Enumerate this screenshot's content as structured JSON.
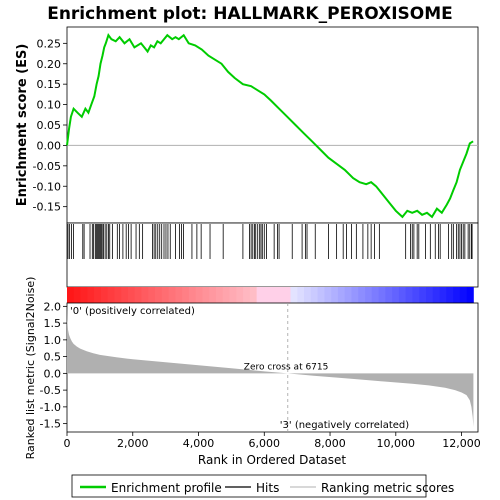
{
  "chart_data": {
    "type": "line",
    "title": "Enrichment plot: HALLMARK_PEROXISOME",
    "panels": {
      "enrichment": {
        "ylabel": "Enrichment score (ES)",
        "ylim": [
          -0.19,
          0.29
        ],
        "yticks": [
          -0.15,
          -0.1,
          -0.05,
          0.0,
          0.05,
          0.1,
          0.15,
          0.2,
          0.25
        ],
        "tick_labels": [
          "-0.15",
          "-0.10",
          "-0.05",
          "0.00",
          "0.05",
          "0.10",
          "0.15",
          "0.20",
          "0.25"
        ],
        "series": [
          {
            "name": "Enrichment profile",
            "color": "#00cc00",
            "x": [
              0,
              60,
              120,
              200,
              320,
              450,
              560,
              650,
              740,
              830,
              900,
              960,
              1020,
              1080,
              1130,
              1180,
              1260,
              1350,
              1480,
              1600,
              1750,
              1900,
              2050,
              2250,
              2450,
              2550,
              2650,
              2750,
              2850,
              2950,
              3050,
              3200,
              3300,
              3400,
              3550,
              3700,
              3900,
              4100,
              4300,
              4500,
              4700,
              4900,
              5100,
              5350,
              5600,
              5800,
              6000,
              6200,
              6450,
              6700,
              6950,
              7200,
              7450,
              7700,
              7950,
              8200,
              8450,
              8700,
              8900,
              9100,
              9250,
              9400,
              9600,
              9800,
              10000,
              10200,
              10350,
              10500,
              10650,
              10800,
              10950,
              11100,
              11250,
              11400,
              11550,
              11650,
              11750,
              11850,
              11950,
              12050,
              12150,
              12250,
              12350
            ],
            "y": [
              0.0,
              0.04,
              0.07,
              0.09,
              0.08,
              0.07,
              0.09,
              0.08,
              0.1,
              0.12,
              0.15,
              0.17,
              0.2,
              0.22,
              0.24,
              0.25,
              0.27,
              0.26,
              0.255,
              0.265,
              0.25,
              0.26,
              0.24,
              0.25,
              0.23,
              0.245,
              0.24,
              0.255,
              0.25,
              0.26,
              0.27,
              0.26,
              0.265,
              0.26,
              0.27,
              0.25,
              0.245,
              0.235,
              0.22,
              0.21,
              0.2,
              0.18,
              0.165,
              0.15,
              0.145,
              0.135,
              0.125,
              0.11,
              0.09,
              0.07,
              0.05,
              0.03,
              0.01,
              -0.01,
              -0.03,
              -0.045,
              -0.06,
              -0.08,
              -0.09,
              -0.095,
              -0.09,
              -0.1,
              -0.12,
              -0.14,
              -0.16,
              -0.175,
              -0.16,
              -0.165,
              -0.16,
              -0.17,
              -0.165,
              -0.175,
              -0.155,
              -0.165,
              -0.145,
              -0.13,
              -0.11,
              -0.09,
              -0.06,
              -0.04,
              -0.02,
              0.005,
              0.01
            ]
          }
        ]
      },
      "hits": {
        "legend_label": "Hits",
        "positions": [
          30,
          80,
          140,
          200,
          480,
          520,
          700,
          770,
          810,
          860,
          890,
          920,
          950,
          980,
          1010,
          1040,
          1070,
          1110,
          1160,
          1210,
          1260,
          1300,
          1380,
          1530,
          1600,
          1700,
          1800,
          1870,
          1950,
          2100,
          2200,
          2300,
          2600,
          2650,
          2700,
          2760,
          2820,
          2880,
          2950,
          3010,
          3070,
          3140,
          3300,
          3420,
          3480,
          3540,
          3800,
          3950,
          4080,
          4350,
          4750,
          5350,
          5550,
          5600,
          5650,
          5700,
          5740,
          5800,
          5860,
          5900,
          5940,
          6000,
          6070,
          6300,
          6400,
          6450,
          6850,
          7150,
          7250,
          7300,
          7550,
          7950,
          8200,
          8400,
          8500,
          8650,
          8800,
          9000,
          9150,
          9250,
          9350,
          9500,
          10300,
          10450,
          10500,
          10550,
          10650,
          10700,
          10900,
          11050,
          11200,
          11300,
          11350,
          11600,
          11700,
          11750,
          11850,
          11900,
          11950,
          12000,
          12050,
          12100,
          12200,
          12250,
          12300,
          12320
        ]
      },
      "ranked_metric": {
        "ylabel": "Ranked list metric (Signal2Noise)",
        "xlabel": "Rank in Ordered Dataset",
        "legend_label": "Ranking metric scores",
        "ylim": [
          -1.75,
          2.1
        ],
        "yticks": [
          -1.5,
          -1.0,
          -0.5,
          0.0,
          0.5,
          1.0,
          1.5,
          2.0
        ],
        "tick_labels": [
          "-1.5",
          "-1.0",
          "-0.5",
          "0.0",
          "0.5",
          "1.0",
          "1.5",
          "2.0"
        ],
        "x": [
          0,
          10,
          30,
          60,
          100,
          150,
          200,
          300,
          400,
          600,
          800,
          1000,
          1500,
          2000,
          3000,
          4000,
          5000,
          6000,
          6715,
          7500,
          8500,
          9500,
          10500,
          11000,
          11500,
          11800,
          12000,
          12150,
          12250,
          12300,
          12340,
          12360
        ],
        "values": [
          2.05,
          1.6,
          1.3,
          1.15,
          1.05,
          0.95,
          0.88,
          0.8,
          0.74,
          0.66,
          0.6,
          0.55,
          0.48,
          0.42,
          0.33,
          0.24,
          0.15,
          0.06,
          0.0,
          -0.07,
          -0.15,
          -0.23,
          -0.31,
          -0.36,
          -0.43,
          -0.5,
          -0.57,
          -0.65,
          -0.8,
          -1.0,
          -1.3,
          -1.6
        ],
        "zero_cross_label": "Zero cross at 6715",
        "zero_cross": 6715,
        "pos_label": "'0' (positively correlated)",
        "neg_label": "'3' (negatively correlated)"
      }
    },
    "x_axis": {
      "xlim": [
        0,
        12500
      ],
      "xticks": [
        0,
        2000,
        4000,
        6000,
        8000,
        10000,
        12000
      ],
      "tick_labels": [
        "0",
        "2,000",
        "4,000",
        "6,000",
        "8,000",
        "10,000",
        "12,000"
      ],
      "n_genes": 12360
    },
    "legend": {
      "items": [
        "Enrichment profile",
        "Hits",
        "Ranking metric scores"
      ],
      "placement": "bottom"
    },
    "colors": {
      "profile": "#00cc00",
      "pos_label": "#e00000",
      "neg_label": "#0000cc",
      "metric_fill": "#b0b0b0",
      "zero_line": "#c8c8c8"
    }
  }
}
